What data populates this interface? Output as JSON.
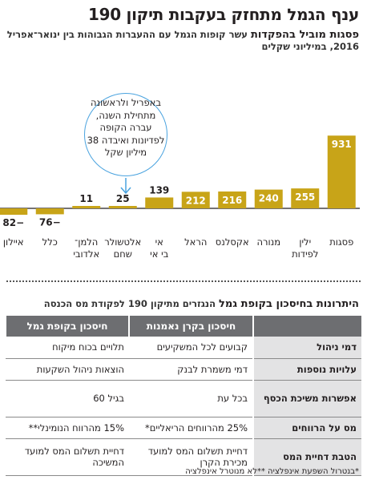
{
  "headline": "ענף הגמל מתחזק בעקבות תיקון 190",
  "subhead_bold": "פסגות מוביל בהפקדות",
  "subhead_rest": " עשר קופות הגמל עם ההעברות הגבוהות בין ינואר־אפריל 2016, במיליוני שקלים",
  "callout": "באפריל ולראשונה מתחילת השנה, עברה הקופה לפדיונות ואיבדה 38 מיליון שקל",
  "colors": {
    "bar": "#c8a418",
    "baseline": "#231f20",
    "callout_border": "#4aa3df",
    "header_bg": "#6d6e71",
    "rowhead_bg": "#e3e3e4"
  },
  "chart_data": {
    "type": "bar",
    "categories": [
      "פסגות",
      "ילין לפידות",
      "מנורה",
      "אקסלנס",
      "הראל",
      "אי בי אי",
      "אלטשולר שחם",
      "הלמן־ אלדובי",
      "כלל",
      "איילון"
    ],
    "values": [
      931,
      255,
      240,
      216,
      212,
      139,
      25,
      11,
      -76,
      -82
    ],
    "value_labels": [
      "931",
      "255",
      "240",
      "216",
      "212",
      "139",
      "25",
      "11",
      "−76",
      "−82"
    ]
  },
  "table": {
    "title_bold": "היתרונות בחיסכון בקופת גמל",
    "title_rest": " הנגזרים מתיקון 190 לפקודת מס הכנסה",
    "headers": [
      "חיסכון בקרן נאמנות",
      "חיסכון בקופת גמל"
    ],
    "rows": [
      {
        "label": "דמי ניהול",
        "fund": "קבועים לכל המשקיעים",
        "gemel": "תלויים בכוח מיקוח"
      },
      {
        "label": "עלויות נוספות",
        "fund": "דמי משמרת לבנק",
        "gemel": "הוצאות ניהול השקעות"
      },
      {
        "label": "אפשרות משיכת הכסף",
        "fund": "בכל עת",
        "gemel": "בגיל 60"
      },
      {
        "label": "מס על הרווחים",
        "fund": "25% מהרווחים הריאליים*",
        "gemel": "15% מהרווח הנומינלי**"
      },
      {
        "label": "הטבת דחיית המס",
        "fund": "דחיית תשלום המס למועד מכירת הקרן",
        "gemel": "דחיית תשלום המס למועד המשיכה"
      }
    ]
  },
  "footnote": "*בנטרול השפעת אינפלציה **לא מנוטרל אינפלציה"
}
